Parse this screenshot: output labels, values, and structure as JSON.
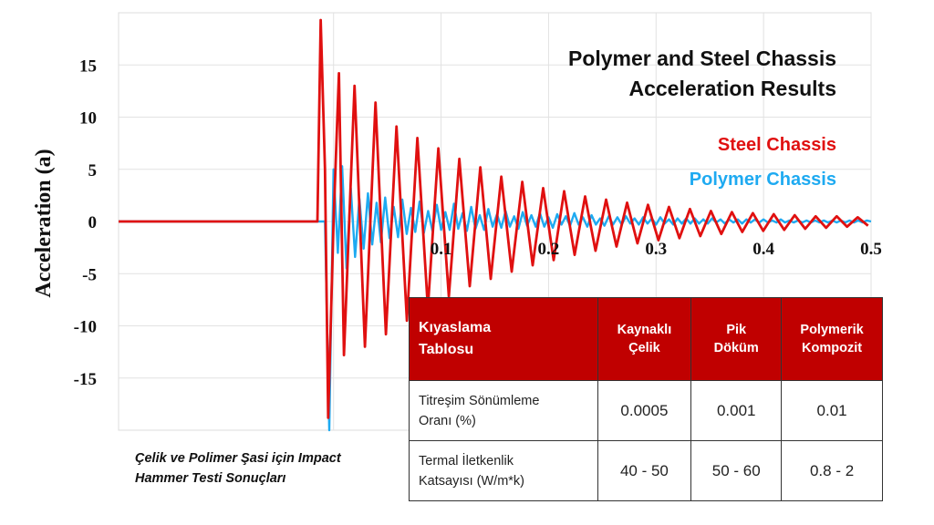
{
  "chart_data": {
    "type": "line",
    "title": [
      "Polymer and Steel Chassis",
      "Acceleration Results"
    ],
    "ylabel": "Acceleration  (a)",
    "xlabel": "",
    "xlim": [
      -0.2,
      0.5
    ],
    "ylim": [
      -20,
      20
    ],
    "xticks": [
      "0.1",
      "0.2",
      "0.3",
      "0.4",
      "0.5"
    ],
    "yticks": [
      "15",
      "10",
      "5",
      "0",
      "-5",
      "-10",
      "-15"
    ],
    "grid": true,
    "legend_position": "top-right",
    "series": [
      {
        "name": "Steel Chassis",
        "color": "#e01010",
        "x": [
          -0.2,
          -0.02,
          -0.015,
          -0.012,
          -0.008,
          -0.005,
          0.0,
          0.005,
          0.0097,
          0.0195,
          0.0292,
          0.039,
          0.0487,
          0.0585,
          0.0682,
          0.078,
          0.0877,
          0.0975,
          0.1072,
          0.117,
          0.1267,
          0.1365,
          0.1462,
          0.156,
          0.1657,
          0.1755,
          0.1852,
          0.195,
          0.2047,
          0.2145,
          0.2242,
          0.234,
          0.2437,
          0.2535,
          0.2632,
          0.273,
          0.2827,
          0.2925,
          0.3022,
          0.312,
          0.3217,
          0.3315,
          0.3412,
          0.351,
          0.3607,
          0.3705,
          0.3802,
          0.39,
          0.3997,
          0.4095,
          0.4192,
          0.429,
          0.4387,
          0.4485,
          0.4582,
          0.468,
          0.4777,
          0.4875,
          0.4972
        ],
        "y": [
          0,
          0,
          0,
          19.3,
          5.0,
          -18.8,
          0.0,
          14.2,
          -12.8,
          13.0,
          -12.0,
          11.4,
          -10.8,
          9.1,
          -9.5,
          8.0,
          -8.3,
          7.0,
          -7.2,
          6.0,
          -6.2,
          5.2,
          -5.5,
          4.3,
          -4.8,
          3.8,
          -4.2,
          3.2,
          -3.7,
          2.9,
          -3.2,
          2.4,
          -2.8,
          2.1,
          -2.4,
          1.8,
          -2.1,
          1.6,
          -1.8,
          1.4,
          -1.6,
          1.2,
          -1.4,
          1.0,
          -1.2,
          0.9,
          -1.0,
          0.8,
          -0.9,
          0.7,
          -0.8,
          0.6,
          -0.7,
          0.5,
          -0.6,
          0.5,
          -0.5,
          0.4,
          -0.4
        ]
      },
      {
        "name": "Polymer Chassis",
        "color": "#1eaaf1",
        "x": [
          -0.2,
          -0.012,
          -0.008,
          -0.004,
          0.0,
          0.004,
          0.008,
          0.012,
          0.016,
          0.02,
          0.024,
          0.028,
          0.032,
          0.036,
          0.04,
          0.044,
          0.048,
          0.052,
          0.056,
          0.06,
          0.064,
          0.068,
          0.072,
          0.076,
          0.08,
          0.084,
          0.088,
          0.092,
          0.096,
          0.1,
          0.104,
          0.108,
          0.112,
          0.116,
          0.12,
          0.124,
          0.128,
          0.132,
          0.136,
          0.14,
          0.144,
          0.148,
          0.152,
          0.156,
          0.16,
          0.164,
          0.168,
          0.172,
          0.176,
          0.18,
          0.184,
          0.188,
          0.192,
          0.196,
          0.2,
          0.204,
          0.208,
          0.212,
          0.216,
          0.22,
          0.224,
          0.228,
          0.232,
          0.236,
          0.24,
          0.244,
          0.248,
          0.252,
          0.256,
          0.26,
          0.264,
          0.268,
          0.272,
          0.276,
          0.28,
          0.284,
          0.288,
          0.292,
          0.296,
          0.3,
          0.304,
          0.308,
          0.312,
          0.316,
          0.32,
          0.324,
          0.328,
          0.332,
          0.336,
          0.34,
          0.344,
          0.348,
          0.352,
          0.356,
          0.36,
          0.364,
          0.368,
          0.372,
          0.376,
          0.38,
          0.384,
          0.388,
          0.392,
          0.396,
          0.4,
          0.404,
          0.408,
          0.412,
          0.416,
          0.42,
          0.424,
          0.428,
          0.432,
          0.436,
          0.44,
          0.444,
          0.448,
          0.452,
          0.456,
          0.46,
          0.464,
          0.468,
          0.472,
          0.476,
          0.48,
          0.484,
          0.488,
          0.492,
          0.496,
          0.5
        ],
        "y": [
          0,
          0,
          0,
          -20,
          5.0,
          -3.0,
          5.3,
          -4.5,
          3.2,
          -3.4,
          2.2,
          -2.6,
          2.7,
          -2.2,
          1.8,
          -2.0,
          2.3,
          -1.6,
          1.4,
          -1.5,
          2.1,
          -1.2,
          1.3,
          -1.0,
          1.9,
          -1.1,
          1.0,
          -0.9,
          1.6,
          -0.8,
          0.9,
          -0.8,
          1.7,
          -0.7,
          0.8,
          -0.9,
          1.4,
          -0.7,
          0.6,
          -0.8,
          1.2,
          -0.5,
          0.7,
          -0.6,
          1.0,
          -0.5,
          0.5,
          -0.7,
          0.9,
          -0.4,
          0.6,
          -0.5,
          0.8,
          -0.5,
          0.4,
          -0.6,
          0.7,
          -0.3,
          0.5,
          -0.4,
          0.8,
          -0.3,
          0.4,
          -0.5,
          0.6,
          -0.3,
          0.3,
          -0.4,
          0.5,
          -0.3,
          0.4,
          -0.3,
          0.5,
          -0.2,
          0.3,
          -0.3,
          0.4,
          -0.2,
          0.3,
          -0.3,
          0.4,
          -0.2,
          0.2,
          -0.3,
          0.3,
          -0.2,
          0.3,
          -0.2,
          0.3,
          -0.2,
          0.2,
          -0.2,
          0.3,
          -0.1,
          0.2,
          -0.2,
          0.2,
          -0.1,
          0.2,
          -0.2,
          0.2,
          -0.1,
          0.2,
          -0.1,
          0.2,
          -0.1,
          0.1,
          -0.1,
          0.2,
          -0.1,
          0.1,
          -0.1,
          0.1,
          -0.1,
          0.1,
          -0.1,
          0.1,
          -0.1,
          0.1,
          -0.1,
          0.1,
          -0.1,
          0.1,
          -0.1,
          0.1,
          -0.1,
          0.1,
          -0.1,
          0.1,
          0.0
        ]
      }
    ]
  },
  "caption": [
    "Çelik ve Polimer Şasi için Impact",
    "Hammer Testi Sonuçları"
  ],
  "table": {
    "header": [
      [
        "Kıyaslama",
        "Tablosu"
      ],
      [
        "Kaynaklı",
        "Çelik"
      ],
      [
        "Pik",
        "Döküm"
      ],
      [
        "Polymerik",
        "Kompozit"
      ]
    ],
    "rows": [
      {
        "label": [
          "Titreşim Sönümleme",
          "Oranı (%)"
        ],
        "values": [
          "0.0005",
          "0.001",
          "0.01"
        ]
      },
      {
        "label": [
          "Termal İletkenlik",
          "Katsayısı (W/m*k)"
        ],
        "values": [
          "40 - 50",
          "50 - 60",
          "0.8 - 2"
        ]
      }
    ],
    "header_color": "#c00000"
  }
}
